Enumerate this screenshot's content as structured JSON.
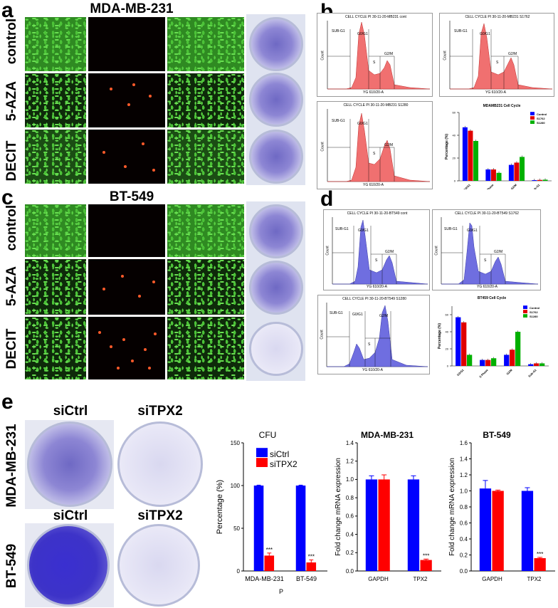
{
  "panels": {
    "a": {
      "letter": "a",
      "title": "MDA-MB-231",
      "rows": [
        "control",
        "5-AZA",
        "DECIT"
      ]
    },
    "b": {
      "letter": "b",
      "plots": [
        {
          "title": "CELL CYCLE PI 30-11-20-MB231 cont",
          "xlabel": "YG 610/20-A",
          "ylabel": "Count"
        },
        {
          "title": "CELL CYCLE PI 30-11-20-MB231 S1762",
          "xlabel": "YG 610/20-A",
          "ylabel": "Count"
        },
        {
          "title": "CELL CYCLE PI 30-11-20-MB231 S1280",
          "xlabel": "YG 610/20-A",
          "ylabel": "Count"
        }
      ],
      "gates": [
        "SUB-G1",
        "G0/G1",
        "S",
        "G2/M"
      ]
    },
    "c": {
      "letter": "c",
      "title": "BT-549",
      "rows": [
        "control",
        "5-AZA",
        "DECIT"
      ]
    },
    "d": {
      "letter": "d",
      "plots": [
        {
          "title": "CELL CYCLE PI 30-11-20-BT549 cont",
          "xlabel": "YG 610/20-A",
          "ylabel": "Count"
        },
        {
          "title": "CELL CYCLE PI 30-11-20-BT549 S1762",
          "xlabel": "YG 610/20-A",
          "ylabel": "Count"
        },
        {
          "title": "CELL CYCLE PI 30-11-20-BT549 S1280",
          "xlabel": "YG 610/20-A",
          "ylabel": "Count"
        }
      ],
      "gates": [
        "SUB-G1",
        "G0/G1",
        "S",
        "G2/M"
      ]
    },
    "e": {
      "letter": "e",
      "col_labels": [
        "siCtrl",
        "siTPX2"
      ],
      "row_labels": [
        "MDA-MB-231",
        "BT-549"
      ],
      "footer": "P"
    }
  },
  "colors": {
    "control": "#0000ff",
    "s1762": "#e00000",
    "s1280": "#00b000",
    "siCtrl": "#0000ff",
    "siTPX2": "#ff0000"
  },
  "chart_data": [
    {
      "id": "b-bar",
      "type": "bar",
      "title": "MDAMB231 Cell Cycle",
      "ylabel": "Percentage (%)",
      "categories": [
        "G0/G1",
        "S Phase",
        "G2/M",
        "Sub-G1"
      ],
      "ylim": [
        0,
        60
      ],
      "yticks": [
        0,
        20,
        40,
        60
      ],
      "legend_position": "top-right",
      "series": [
        {
          "name": "Control",
          "color": "#0000ff",
          "values": [
            47,
            10,
            14,
            0.6
          ]
        },
        {
          "name": "S1762",
          "color": "#e00000",
          "values": [
            44,
            10,
            16,
            0.8
          ]
        },
        {
          "name": "S1280",
          "color": "#00b000",
          "values": [
            35,
            7,
            21,
            1.0
          ]
        }
      ]
    },
    {
      "id": "d-bar",
      "type": "bar",
      "title": "BT459 Cell Cycle",
      "ylabel": "Percentage (%)",
      "categories": [
        "G0/G1",
        "S Phase",
        "G2/M",
        "Sub-G1"
      ],
      "ylim": [
        0,
        70
      ],
      "yticks": [
        0,
        20,
        40,
        60
      ],
      "legend_position": "top-right",
      "series": [
        {
          "name": "Control",
          "color": "#0000ff",
          "values": [
            57,
            7,
            13,
            2
          ]
        },
        {
          "name": "S1762",
          "color": "#e00000",
          "values": [
            51,
            7,
            19,
            3
          ]
        },
        {
          "name": "S1280",
          "color": "#00b000",
          "values": [
            13,
            9,
            40,
            3
          ]
        }
      ]
    },
    {
      "id": "e-cfu",
      "type": "bar",
      "title": "CFU",
      "ylabel": "Percentage (%)",
      "categories": [
        "MDA-MB-231",
        "BT-549"
      ],
      "ylim": [
        0,
        150
      ],
      "yticks": [
        0,
        50,
        100,
        150
      ],
      "legend_position": "top-left",
      "annotations": [
        "***",
        "***"
      ],
      "series": [
        {
          "name": "siCtrl",
          "color": "#0000ff",
          "values": [
            100,
            100
          ],
          "errors": [
            0.5,
            0.5
          ]
        },
        {
          "name": "siTPX2",
          "color": "#ff0000",
          "values": [
            18,
            10
          ],
          "errors": [
            3,
            3
          ]
        }
      ]
    },
    {
      "id": "e-mda",
      "type": "bar",
      "title": "MDA-MB-231",
      "ylabel": "Fold change mRNA expression",
      "categories": [
        "GAPDH",
        "TPX2"
      ],
      "ylim": [
        0,
        1.4
      ],
      "yticks": [
        0.0,
        0.2,
        0.4,
        0.6,
        0.8,
        1.0,
        1.2,
        1.4
      ],
      "annotations": [
        "",
        "***"
      ],
      "series": [
        {
          "name": "siCtrl",
          "color": "#0000ff",
          "values": [
            1.0,
            1.0
          ],
          "errors": [
            0.04,
            0.04
          ]
        },
        {
          "name": "siTPX2",
          "color": "#ff0000",
          "values": [
            1.0,
            0.12
          ],
          "errors": [
            0.05,
            0.01
          ]
        }
      ]
    },
    {
      "id": "e-bt",
      "type": "bar",
      "title": "BT-549",
      "ylabel": "Fold change mRNA expression",
      "categories": [
        "GAPDH",
        "TPX2"
      ],
      "ylim": [
        0,
        1.6
      ],
      "yticks": [
        0.0,
        0.2,
        0.4,
        0.6,
        0.8,
        1.0,
        1.2,
        1.4,
        1.6
      ],
      "annotations": [
        "",
        "***"
      ],
      "series": [
        {
          "name": "siCtrl",
          "color": "#0000ff",
          "values": [
            1.03,
            1.0
          ],
          "errors": [
            0.1,
            0.04
          ]
        },
        {
          "name": "siTPX2",
          "color": "#ff0000",
          "values": [
            1.0,
            0.16
          ],
          "errors": [
            0.01,
            0.01
          ]
        }
      ]
    }
  ]
}
